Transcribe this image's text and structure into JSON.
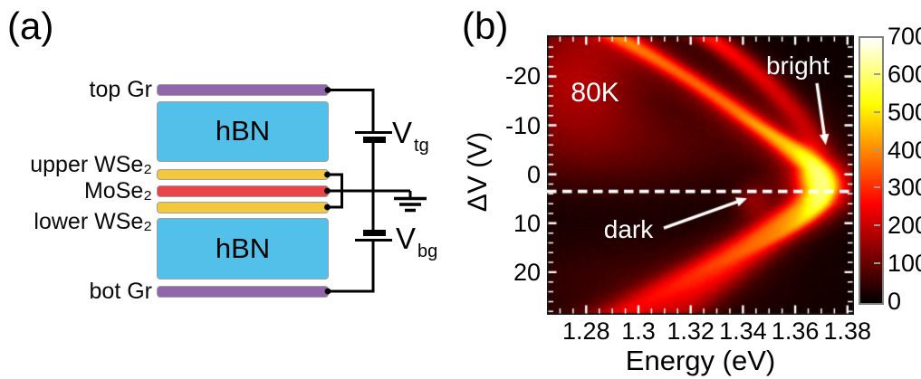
{
  "panel_a": {
    "label": "(a)",
    "stack": {
      "top_gr": {
        "label": "top Gr",
        "color": "#9166ab"
      },
      "hbn_top": {
        "label": "hBN",
        "color": "#53c0ea"
      },
      "upper_wse2": {
        "label": "upper WSe₂",
        "color": "#f2c93e"
      },
      "mose2": {
        "label": "MoSe₂",
        "color": "#ea4348"
      },
      "lower_wse2": {
        "label": "lower WSe₂",
        "color": "#f2c93e"
      },
      "hbn_bot": {
        "label": "hBN",
        "color": "#53c0ea"
      },
      "bot_gr": {
        "label": "bot Gr",
        "color": "#9166ab"
      }
    },
    "circuit": {
      "v_tg": {
        "main": "V",
        "sub": "tg"
      },
      "v_bg": {
        "main": "V",
        "sub": "bg"
      },
      "wire_color": "#000000"
    }
  },
  "panel_b": {
    "label": "(b)"
  },
  "chart_data": {
    "type": "heatmap",
    "xlabel": "Energy (eV)",
    "ylabel": "ΔV (V)",
    "xlim": [
      1.265,
      1.3825
    ],
    "ylim_top": -28.4,
    "ylim_bottom": 28.7,
    "x_ticks": [
      1.28,
      1.3,
      1.32,
      1.34,
      1.36,
      1.38
    ],
    "x_tick_labels": [
      "1.28",
      "1.3",
      "1.32",
      "1.34",
      "1.36",
      "1.38"
    ],
    "x_minor_step": 0.005,
    "y_ticks": [
      -20,
      -10,
      0,
      10,
      20
    ],
    "y_tick_labels": [
      "-20",
      "-10",
      "0",
      "10",
      "20"
    ],
    "y_minor_step": 2,
    "colorbar": {
      "min": 0,
      "max": 700,
      "ticks": [
        0,
        100,
        200,
        300,
        400,
        500,
        600,
        700
      ],
      "tick_labels": [
        "0",
        "100",
        "200",
        "300",
        "400",
        "500",
        "600",
        "700"
      ],
      "colormap": "hot"
    },
    "annotations": {
      "temperature": {
        "text": "80K",
        "e": 1.2834,
        "v": -16.6,
        "color": "#ffffff"
      },
      "bright": {
        "text": "bright",
        "e": 1.361,
        "v": -22.1,
        "color": "#ffffff",
        "arrow_from": {
          "e": 1.3683,
          "v": -18.6
        },
        "arrow_to": {
          "e": 1.3717,
          "v": -6.0
        }
      },
      "dark": {
        "text": "dark",
        "e": 1.2962,
        "v": 11.3,
        "color": "#ffffff",
        "arrow_from": {
          "e": 1.3097,
          "v": 11.0
        },
        "arrow_to": {
          "e": 1.3416,
          "v": 4.9
        }
      },
      "dashed_line_v": 3.5
    },
    "heatmap_model": {
      "base": 15,
      "soft_max": 640,
      "noise": 7,
      "clouds": [
        {
          "e": 1.276,
          "v": -21,
          "se": 0.019,
          "sv": 9.0,
          "a": 165
        },
        {
          "e": 1.29,
          "v": -6,
          "se": 0.045,
          "sv": 7.0,
          "a": 80
        },
        {
          "e": 1.297,
          "v": 22,
          "se": 0.04,
          "sv": 7.0,
          "a": 45
        }
      ],
      "bands": [
        {
          "name": "bright-upper-branch",
          "v_start": -1,
          "v_end": -28.4,
          "curve": [
            1.3685,
            0.00207,
            -2.33e-05
          ],
          "a_start": 315,
          "a_end": 285,
          "s_start": 0.0034,
          "s_end": 0.0046,
          "glow": 90,
          "gs": 0.011,
          "vfade": 3
        },
        {
          "name": "faint-upper-branch",
          "v_start": -7,
          "v_end": -28.4,
          "curve": [
            1.3728,
            0.000521,
            -4.02e-05
          ],
          "a_start": 110,
          "a_end": 235,
          "s_start": 0.004,
          "s_end": 0.0045,
          "glow": 55,
          "gs": 0.01,
          "vfade": 4
        },
        {
          "name": "lower-main-branch",
          "v_start": 3,
          "v_end": 28.7,
          "curve": [
            1.3776,
            -0.0023,
            -2.3e-05
          ],
          "a_start": 225,
          "a_end": 150,
          "s_start": 0.004,
          "s_end": 0.009,
          "glow": 75,
          "gs": 0.014,
          "vfade": 3
        },
        {
          "name": "lower-inner-branch",
          "v_start": 6,
          "v_end": 28.7,
          "curve": [
            1.3824,
            -0.0024,
            0
          ],
          "a_start": 135,
          "a_end": 100,
          "s_start": 0.0045,
          "s_end": 0.008,
          "glow": 40,
          "gs": 0.012,
          "vfade": 3
        }
      ],
      "crescent": {
        "e0": 1.371,
        "v0": 2.5,
        "curv": 0.00016,
        "a": 540,
        "se": 0.0028,
        "sv": 5.5,
        "glow_a": 190,
        "glow_se": 0.0075,
        "glow_sv": 7
      },
      "dark_blob": {
        "e": 1.344,
        "v": 5.5,
        "se": 0.0045,
        "sv": 2.4,
        "a": 95
      }
    }
  }
}
